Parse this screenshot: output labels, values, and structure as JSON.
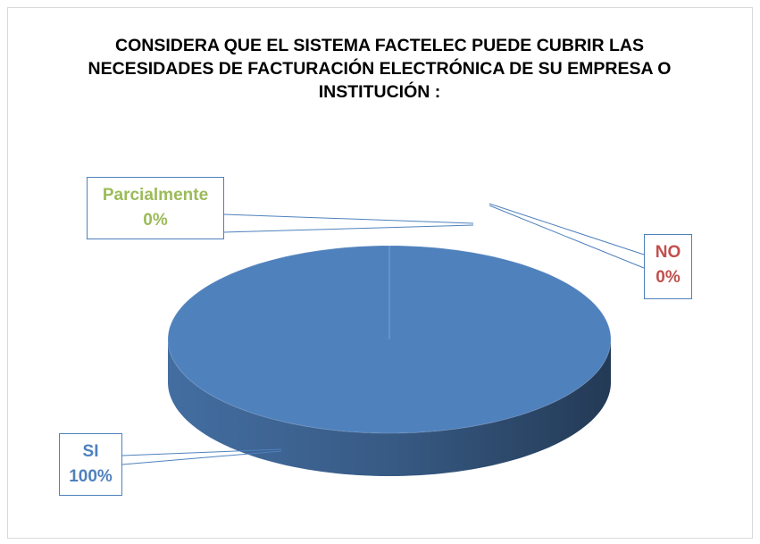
{
  "chart_data": {
    "type": "pie3d",
    "title": "CONSIDERA QUE EL SISTEMA FACTELEC PUEDE CUBRIR LAS NECESIDADES DE FACTURACIÓN ELECTRÓNICA DE SU EMPRESA O INSTITUCIÓN :",
    "categories": [
      "SI",
      "NO",
      "Parcialmente"
    ],
    "values": [
      100,
      0,
      0
    ],
    "value_labels": [
      "100%",
      "0%",
      "0%"
    ],
    "colors": [
      "#4f81bd",
      "#c0504d",
      "#9bbb59"
    ]
  }
}
